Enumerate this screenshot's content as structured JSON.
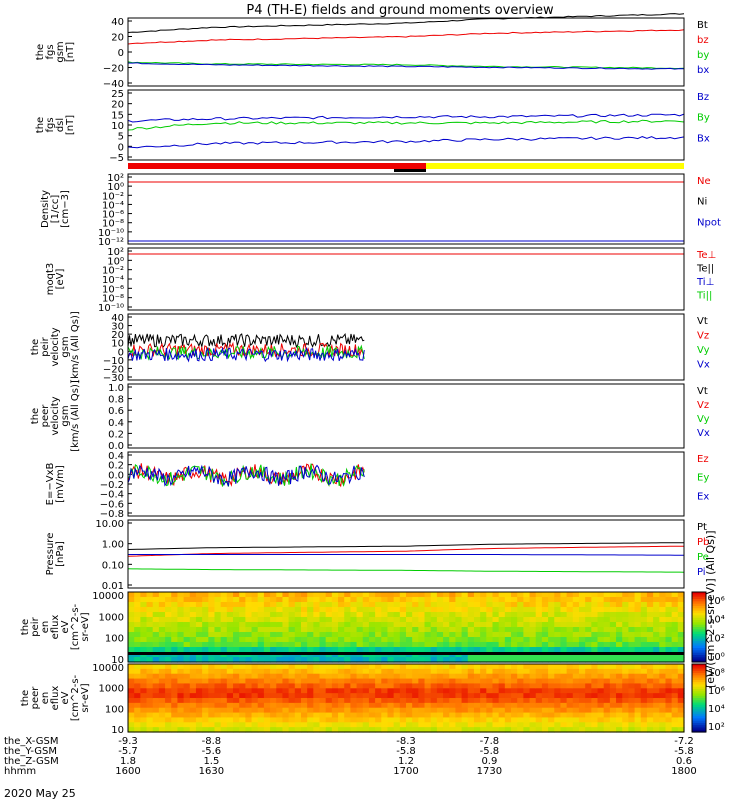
{
  "title": "P4 (TH-E) fields and ground moments overview",
  "date": "2020 May 25",
  "footer_rows": [
    {
      "label": "the_X-GSM",
      "values": [
        "-9.3",
        "-8.8",
        "-8.3",
        "-7.8",
        "-7.2"
      ]
    },
    {
      "label": "the_Y-GSM",
      "values": [
        "-5.7",
        "-5.6",
        "-5.8",
        "-5.8",
        "-5.8"
      ]
    },
    {
      "label": "the_Z-GSM",
      "values": [
        "1.8",
        "1.5",
        "1.2",
        "0.9",
        "0.6"
      ]
    },
    {
      "label": "hhmm",
      "values": [
        "1600",
        "1630",
        "1700",
        "1730",
        "1800"
      ]
    }
  ],
  "colors": {
    "black": "#000000",
    "red": "#ee0000",
    "green": "#00cc00",
    "blue": "#0000cc",
    "yellow": "#ffff00"
  },
  "chart_data": [
    {
      "type": "line",
      "ylabel": [
        "the",
        "fgs",
        "gsm",
        "[nT]"
      ],
      "yticks": [
        "40",
        "20",
        "0",
        "−20",
        "−40"
      ],
      "ylim": [
        -40,
        40
      ],
      "series": [
        {
          "name": "Bt",
          "x": [
            1600,
            1630,
            1700,
            1730,
            1800
          ],
          "y": [
            23,
            29,
            34,
            39,
            45
          ]
        },
        {
          "name": "bz",
          "x": [
            1600,
            1630,
            1700,
            1730,
            1800
          ],
          "y": [
            10,
            14,
            18,
            22,
            26
          ]
        },
        {
          "name": "by",
          "x": [
            1600,
            1630,
            1700,
            1730,
            1800
          ],
          "y": [
            -12,
            -14,
            -15,
            -17,
            -19
          ]
        },
        {
          "name": "bx",
          "x": [
            1600,
            1630,
            1700,
            1730,
            1800
          ],
          "y": [
            -13,
            -15,
            -17,
            -18,
            -20
          ]
        }
      ]
    },
    {
      "type": "line",
      "ylabel": [
        "the",
        "fgs",
        "dsl",
        "[nT]"
      ],
      "yticks": [
        "25",
        "20",
        "15",
        "10",
        "5",
        "0",
        "−5"
      ],
      "ylim": [
        -8,
        26
      ],
      "series": [
        {
          "name": "Bz",
          "x": [
            1600,
            1630,
            1700,
            1730,
            1800
          ],
          "y": [
            11,
            12,
            13,
            13,
            14
          ]
        },
        {
          "name": "By",
          "x": [
            1600,
            1630,
            1700,
            1730,
            1800
          ],
          "y": [
            7,
            10,
            10,
            10,
            11
          ]
        },
        {
          "name": "Bx",
          "x": [
            1600,
            1630,
            1700,
            1730,
            1800
          ],
          "y": [
            -2,
            0,
            1,
            2,
            3
          ]
        }
      ]
    },
    {
      "type": "line",
      "ylabel": [
        "Density",
        "[1/cc]",
        "[cm−3]"
      ],
      "yticks": [
        "10²",
        "10⁰",
        "10⁻²",
        "10⁻⁴",
        "10⁻⁶",
        "10⁻⁸",
        "10⁻¹⁰",
        "10⁻¹²"
      ],
      "series": [
        {
          "name": "Ne"
        },
        {
          "name": "Ni"
        },
        {
          "name": "Npot"
        }
      ]
    },
    {
      "type": "line",
      "ylabel": [
        "moqt3",
        "[eV]"
      ],
      "yticks": [
        "10²",
        "10⁰",
        "10⁻²",
        "10⁻⁴",
        "10⁻⁶",
        "10⁻⁸",
        "10⁻¹⁰"
      ],
      "series": [
        {
          "name": "Te⊥"
        },
        {
          "name": "Te||"
        },
        {
          "name": "Ti⊥"
        },
        {
          "name": "Ti||"
        }
      ]
    },
    {
      "type": "line",
      "ylabel": [
        "the",
        "peir",
        "velocity",
        "gsm",
        "[km/s (All Qs)]"
      ],
      "yticks": [
        "40",
        "30",
        "20",
        "10",
        "0",
        "−10",
        "−20",
        "−30"
      ],
      "ylim": [
        -30,
        40
      ],
      "series": [
        {
          "name": "Vt",
          "mean": 12
        },
        {
          "name": "Vz",
          "mean": 2
        },
        {
          "name": "Vy",
          "mean": -1
        },
        {
          "name": "Vx",
          "mean": -3
        }
      ]
    },
    {
      "type": "line",
      "ylabel": [
        "the",
        "peer",
        "velocity",
        "gsm",
        "[km/s (All Qs)]"
      ],
      "yticks": [
        "1.0",
        "0.8",
        "0.6",
        "0.4",
        "0.2",
        "0.0"
      ],
      "ylim": [
        0,
        1
      ],
      "series": [
        {
          "name": "Vt"
        },
        {
          "name": "Vz"
        },
        {
          "name": "Vy"
        },
        {
          "name": "Vx"
        }
      ]
    },
    {
      "type": "line",
      "ylabel": [
        "E=−VxB",
        "[mV/m]"
      ],
      "yticks": [
        "0.4",
        "0.2",
        "0.0",
        "−0.2",
        "−0.4",
        "−0.6",
        "−0.8"
      ],
      "ylim": [
        -0.8,
        0.45
      ],
      "series": [
        {
          "name": "Ez"
        },
        {
          "name": "Ey"
        },
        {
          "name": "Ex"
        }
      ]
    },
    {
      "type": "line",
      "ylabel": [
        "Pressure",
        "[nPa]"
      ],
      "yticks": [
        "10.00",
        "1.00",
        "0.10",
        "0.01"
      ],
      "yscale": "log",
      "ylim": [
        0.01,
        10
      ],
      "series": [
        {
          "name": "Pt",
          "x": [
            1600,
            1630,
            1700,
            1730,
            1800
          ],
          "y": [
            0.5,
            0.6,
            0.7,
            0.85,
            1.0
          ]
        },
        {
          "name": "Pb",
          "x": [
            1600,
            1630,
            1700,
            1730,
            1800
          ],
          "y": [
            0.25,
            0.33,
            0.42,
            0.55,
            0.7
          ]
        },
        {
          "name": "Pe",
          "x": [
            1600,
            1630,
            1700,
            1730,
            1800
          ],
          "y": [
            0.07,
            0.065,
            0.06,
            0.055,
            0.05
          ]
        },
        {
          "name": "Pi",
          "x": [
            1600,
            1630,
            1700,
            1730,
            1800
          ],
          "y": [
            0.3,
            0.3,
            0.3,
            0.3,
            0.28
          ]
        }
      ]
    },
    {
      "type": "heatmap",
      "ylabel": [
        "the",
        "peir",
        "en",
        "eflux",
        "eV",
        "[cm^2-s-",
        "sr-eV]"
      ],
      "yticks": [
        "10000",
        "1000",
        "100",
        "10"
      ],
      "yscale": "log",
      "colorbar_ticks": [
        "10⁶",
        "10⁴",
        "10²",
        "10⁰"
      ]
    },
    {
      "type": "heatmap",
      "ylabel": [
        "the",
        "peer",
        "en",
        "eflux",
        "eV",
        "[cm^2-s-",
        "sr-eV]"
      ],
      "yticks": [
        "10000",
        "1000",
        "100",
        "10"
      ],
      "yscale": "log",
      "colorbar_ticks": [
        "10⁸",
        "10⁶",
        "10⁴",
        "10²"
      ]
    }
  ],
  "colorbar_label": "[eV/(cm^2-s-sr-eV)] (All Qs)]",
  "x_range": [
    1600,
    1800
  ]
}
